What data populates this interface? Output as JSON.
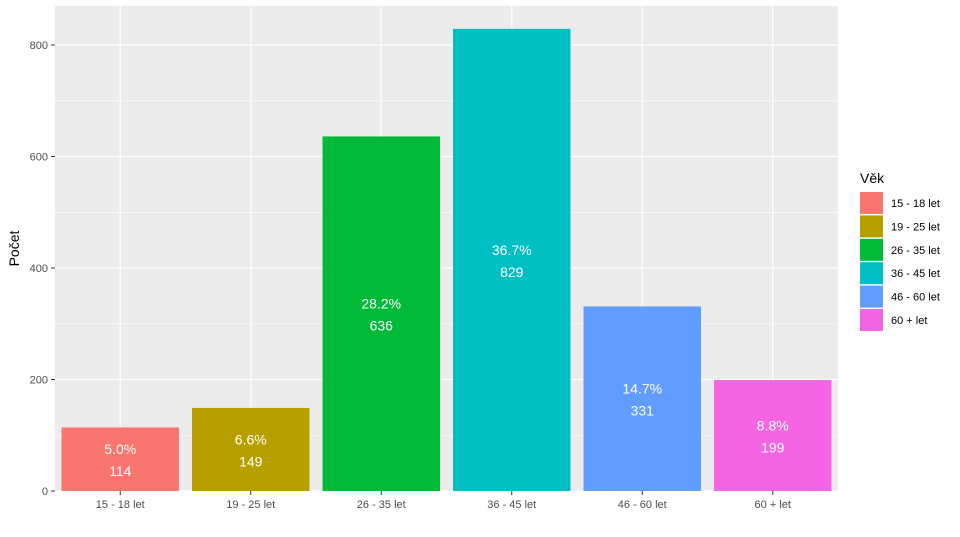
{
  "chart_data": {
    "type": "bar",
    "categories": [
      "15 - 18 let",
      "19 - 25 let",
      "26 - 35 let",
      "36 - 45 let",
      "46 - 60 let",
      "60 + let"
    ],
    "values": [
      114,
      149,
      636,
      829,
      331,
      199
    ],
    "percent_labels": [
      "5.0%",
      "6.6%",
      "28.2%",
      "36.7%",
      "14.7%",
      "8.8%"
    ],
    "colors": [
      "#F8766D",
      "#B79F00",
      "#00BA38",
      "#00BFC4",
      "#619CFF",
      "#F564E3"
    ],
    "ylabel": "Počet",
    "xlabel": "",
    "ylim": [
      0,
      870
    ],
    "yticks": [
      0,
      200,
      400,
      600,
      800
    ],
    "grid": true,
    "legend": {
      "title": "Věk",
      "position": "right",
      "entries": [
        "15 - 18 let",
        "19 - 25 let",
        "26 - 35 let",
        "36 - 45 let",
        "46 - 60 let",
        "60 + let"
      ]
    },
    "panel_background": "#EBEBEB"
  }
}
